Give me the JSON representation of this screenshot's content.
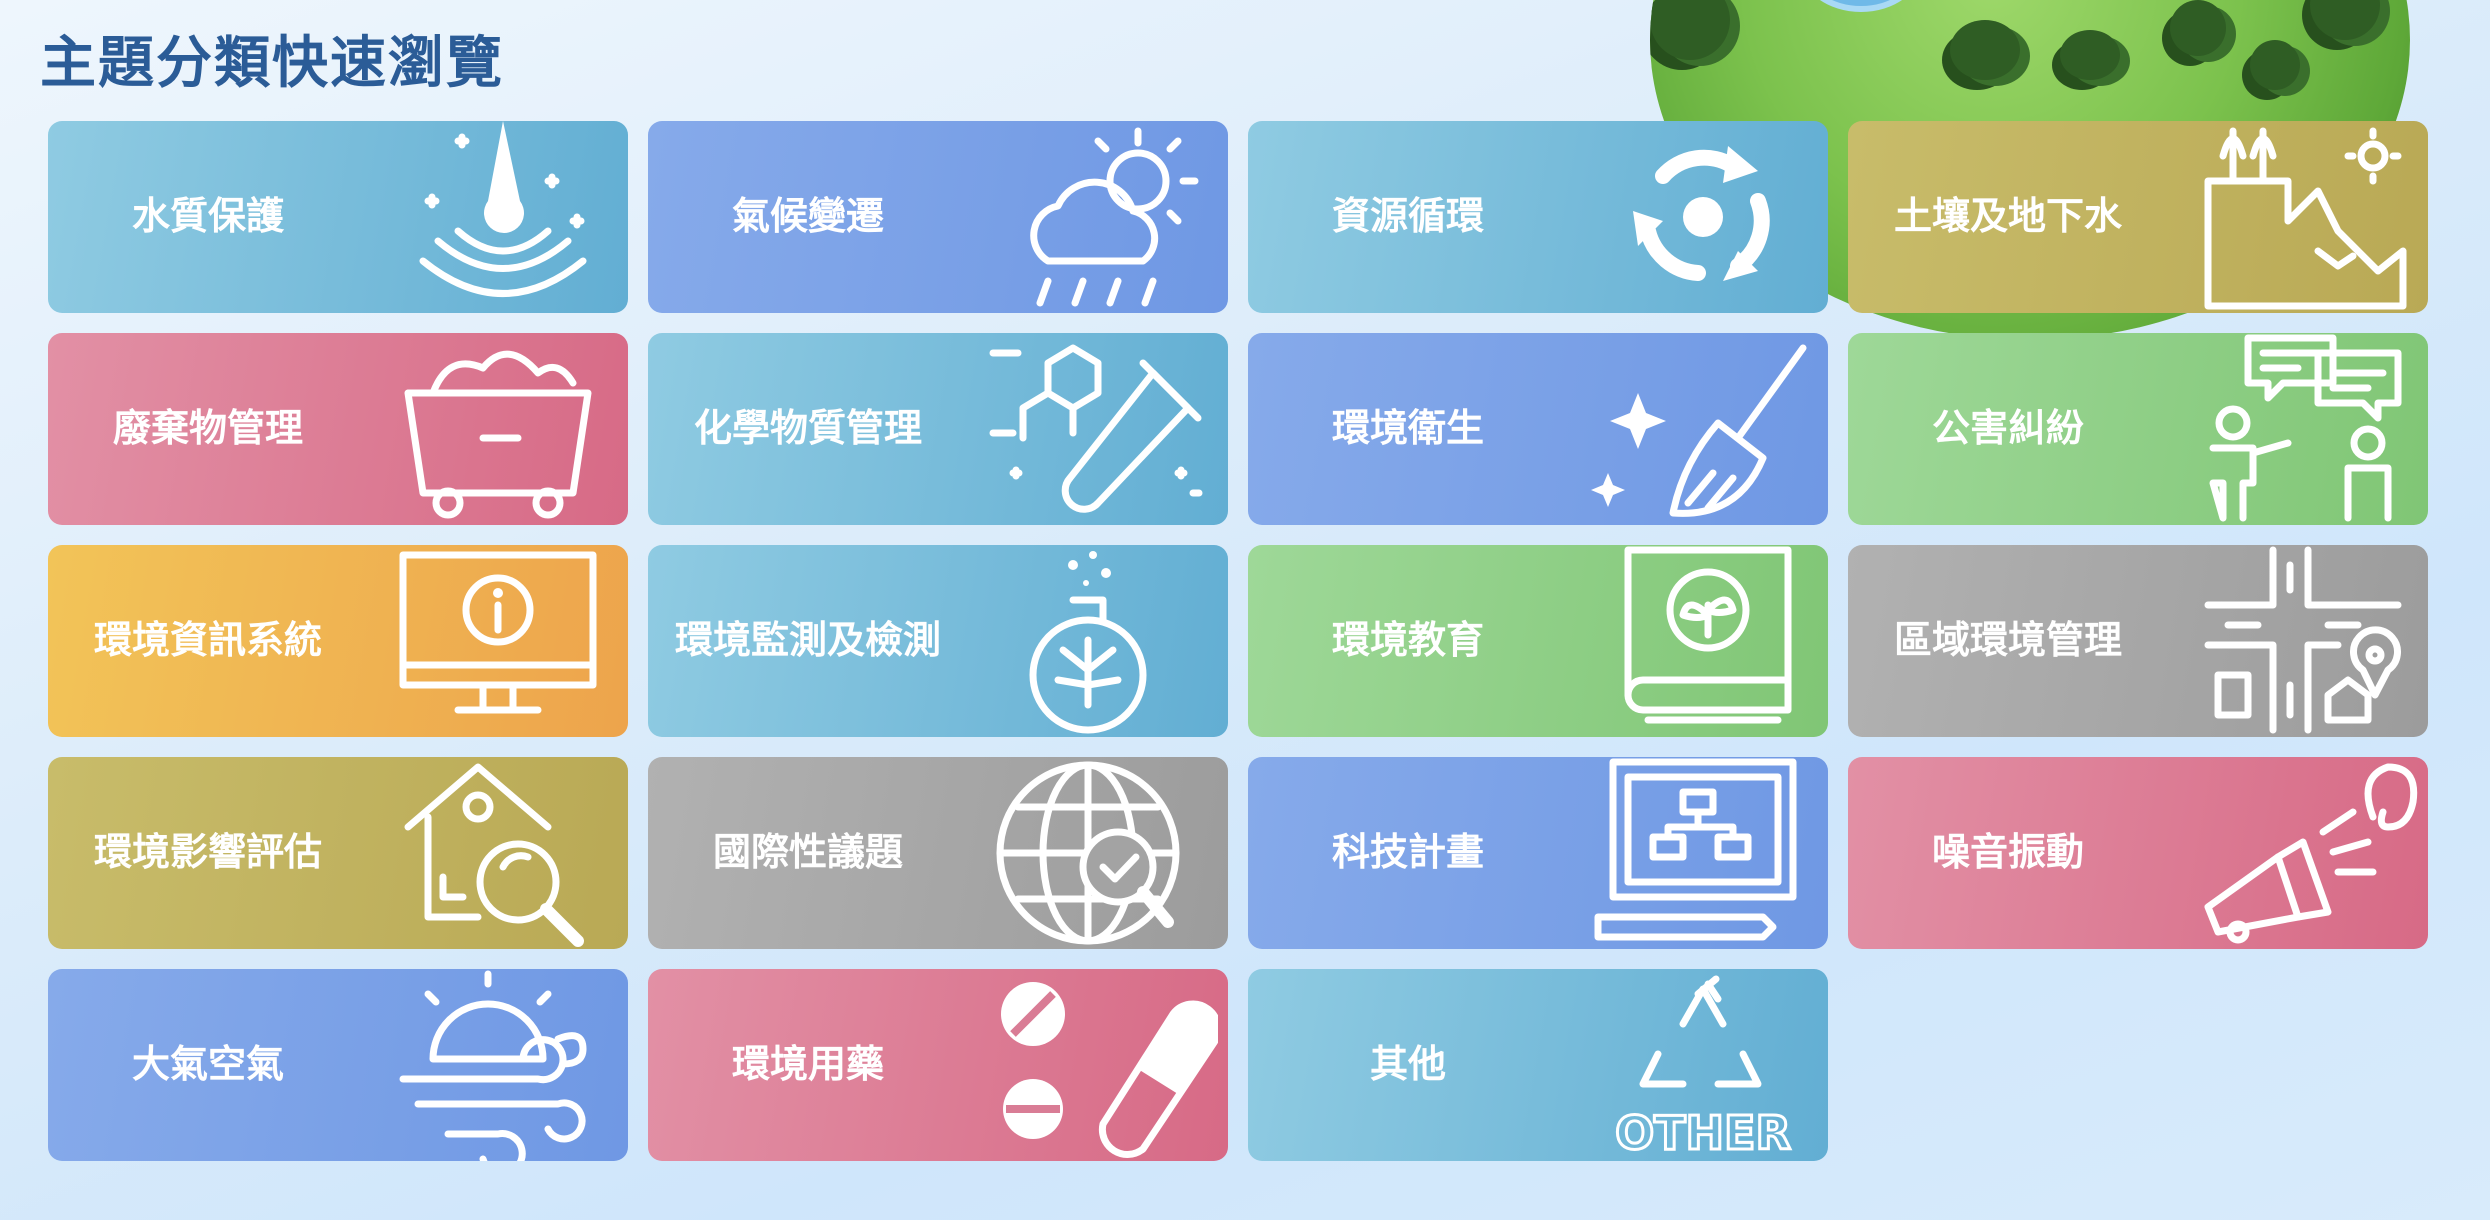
{
  "page": {
    "title": "主題分類快速瀏覽"
  },
  "tiles": [
    {
      "label": "水質保護",
      "icon": "water-drop-icon",
      "color": "teal"
    },
    {
      "label": "氣候變遷",
      "icon": "weather-icon",
      "color": "blue"
    },
    {
      "label": "資源循環",
      "icon": "recycle-arrows-icon",
      "color": "teal"
    },
    {
      "label": "土壤及地下水",
      "icon": "soil-layer-icon",
      "color": "olive"
    },
    {
      "label": "廢棄物管理",
      "icon": "waste-bin-icon",
      "color": "pink"
    },
    {
      "label": "化學物質管理",
      "icon": "test-tube-icon",
      "color": "teal"
    },
    {
      "label": "環境衛生",
      "icon": "broom-icon",
      "color": "blue"
    },
    {
      "label": "公害糾紛",
      "icon": "dispute-people-icon",
      "color": "green"
    },
    {
      "label": "環境資訊系統",
      "icon": "info-monitor-icon",
      "color": "orange"
    },
    {
      "label": "環境監測及檢測",
      "icon": "flask-icon",
      "color": "teal"
    },
    {
      "label": "環境教育",
      "icon": "book-icon",
      "color": "green"
    },
    {
      "label": "區域環境管理",
      "icon": "map-pin-icon",
      "color": "gray"
    },
    {
      "label": "環境影響評估",
      "icon": "house-magnifier-icon",
      "color": "olive"
    },
    {
      "label": "國際性議題",
      "icon": "globe-check-icon",
      "color": "gray"
    },
    {
      "label": "科技計畫",
      "icon": "computer-chart-icon",
      "color": "blue"
    },
    {
      "label": "噪音振動",
      "icon": "megaphone-ear-icon",
      "color": "pink"
    },
    {
      "label": "大氣空氣",
      "icon": "sun-wind-icon",
      "color": "blue"
    },
    {
      "label": "環境用藥",
      "icon": "pills-icon",
      "color": "pink"
    },
    {
      "label": "其他",
      "icon": "other-recycle-icon",
      "color": "teal"
    }
  ],
  "other_icon_text": "OTHER"
}
